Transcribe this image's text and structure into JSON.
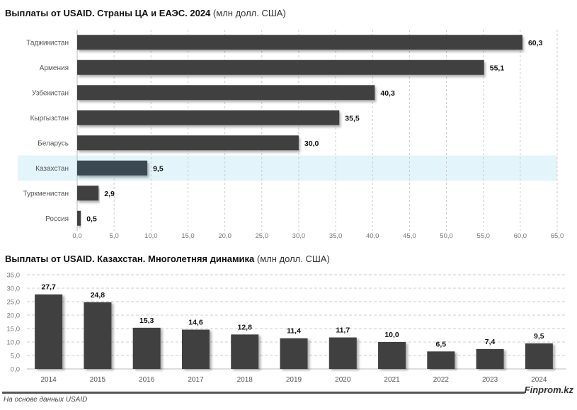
{
  "chart_data": [
    {
      "type": "bar",
      "orientation": "horizontal",
      "title": "Выплаты от USAID. Страны ЦА и ЕАЭС. 2024",
      "unit": "(млн долл. США)",
      "categories": [
        "Таджикистан",
        "Армения",
        "Узбекистан",
        "Кыргызстан",
        "Беларусь",
        "Казахстан",
        "Туркменистан",
        "Россия"
      ],
      "values": [
        60.3,
        55.1,
        40.3,
        35.5,
        30.0,
        9.5,
        2.9,
        0.5
      ],
      "value_labels": [
        "60,3",
        "55,1",
        "40,3",
        "35,5",
        "30,0",
        "9,5",
        "2,9",
        "0,5"
      ],
      "highlight": "Казахстан",
      "xlim": [
        0,
        65
      ],
      "xticks": [
        "0,0",
        "5,0",
        "10,0",
        "15,0",
        "20,0",
        "25,0",
        "30,0",
        "35,0",
        "40,0",
        "45,0",
        "50,0",
        "55,0",
        "60,0",
        "65,0"
      ],
      "grid": true,
      "colors": {
        "bar": "#404040",
        "highlight_bar": "#3a4a52",
        "highlight_band": "#e3f4fa"
      }
    },
    {
      "type": "bar",
      "orientation": "vertical",
      "title": "Выплаты от USAID. Казахстан. Многолетняя динамика",
      "unit": "(млн долл. США)",
      "categories": [
        "2014",
        "2015",
        "2016",
        "2017",
        "2018",
        "2019",
        "2020",
        "2021",
        "2022",
        "2023",
        "2024"
      ],
      "values": [
        27.7,
        24.8,
        15.3,
        14.6,
        12.8,
        11.4,
        11.7,
        10.0,
        6.5,
        7.4,
        9.5
      ],
      "value_labels": [
        "27,7",
        "24,8",
        "15,3",
        "14,6",
        "12,8",
        "11,4",
        "11,7",
        "10,0",
        "6,5",
        "7,4",
        "9,5"
      ],
      "ylim": [
        0,
        35
      ],
      "yticks": [
        "0,0",
        "5,0",
        "10,0",
        "15,0",
        "20,0",
        "25,0",
        "30,0",
        "35,0"
      ],
      "grid": true,
      "colors": {
        "bar": "#404040"
      }
    }
  ],
  "titles": {
    "chart1_bold": "Выплаты от USAID. Страны ЦА и ЕАЭС. 2024",
    "chart1_unit": "(млн долл. США)",
    "chart2_bold": "Выплаты от USAID. Казахстан. Многолетняя динамика",
    "chart2_unit": "(млн долл. США)"
  },
  "footer": {
    "brand": "Finprom.kz",
    "source": "На основе данных USAID"
  }
}
